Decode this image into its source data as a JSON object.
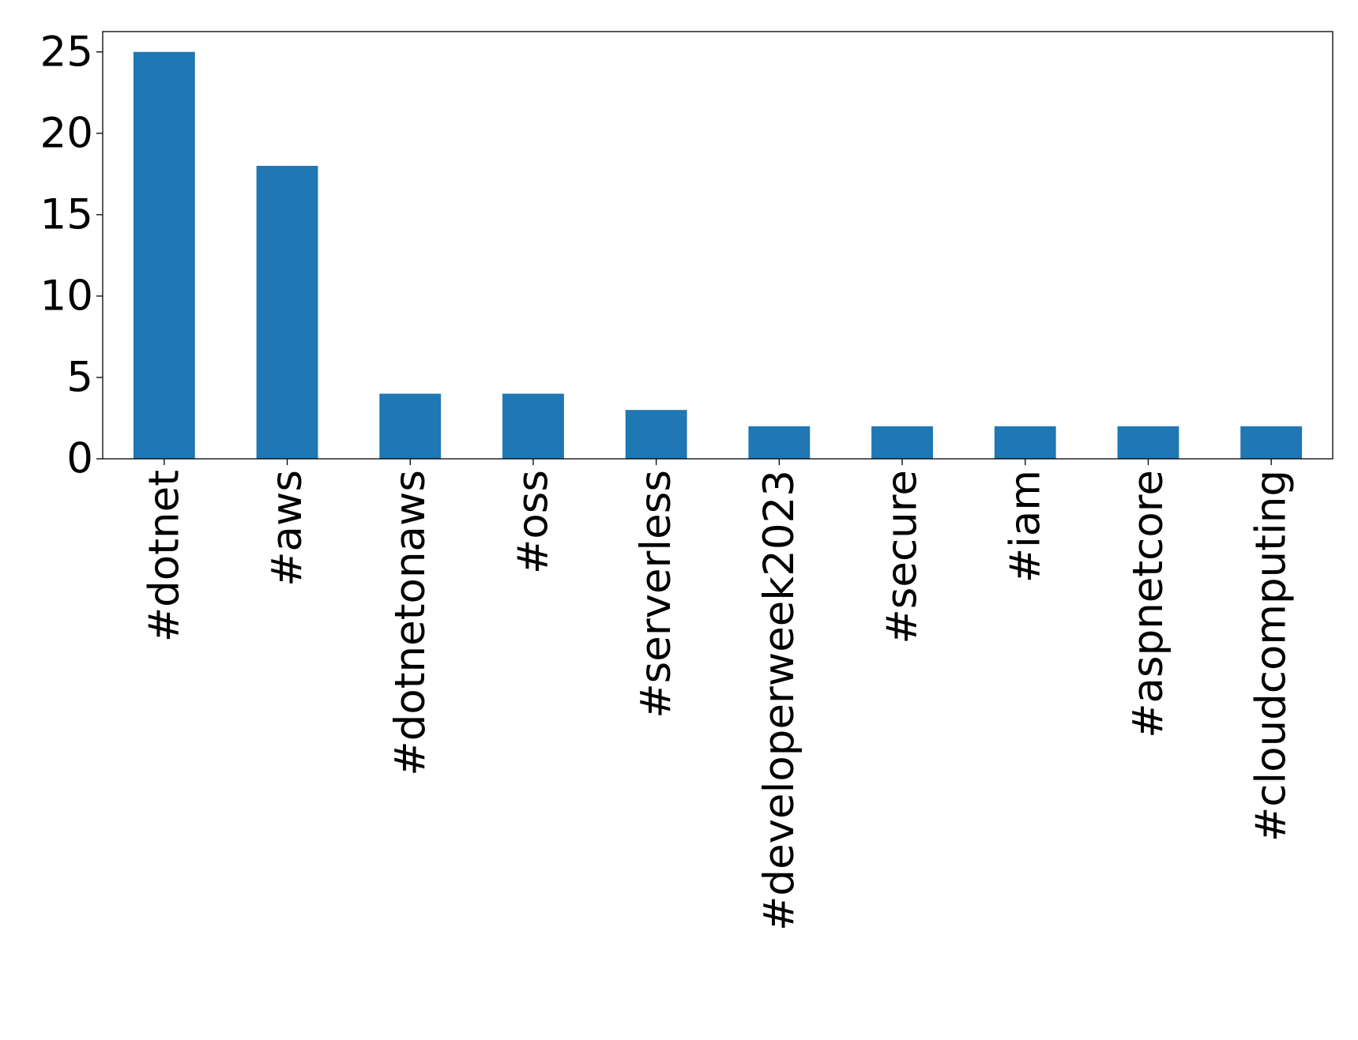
{
  "chart_data": {
    "type": "bar",
    "categories": [
      "#dotnet",
      "#aws",
      "#dotnetonaws",
      "#oss",
      "#serverless",
      "#developerweek2023",
      "#secure",
      "#iam",
      "#aspnetcore",
      "#cloudcomputing"
    ],
    "values": [
      25,
      18,
      4,
      4,
      3,
      2,
      2,
      2,
      2,
      2
    ],
    "color": "#1f77b4",
    "ylim": [
      0,
      26.25
    ],
    "yticks": [
      0,
      5,
      10,
      15,
      20,
      25
    ],
    "grid": false
  }
}
